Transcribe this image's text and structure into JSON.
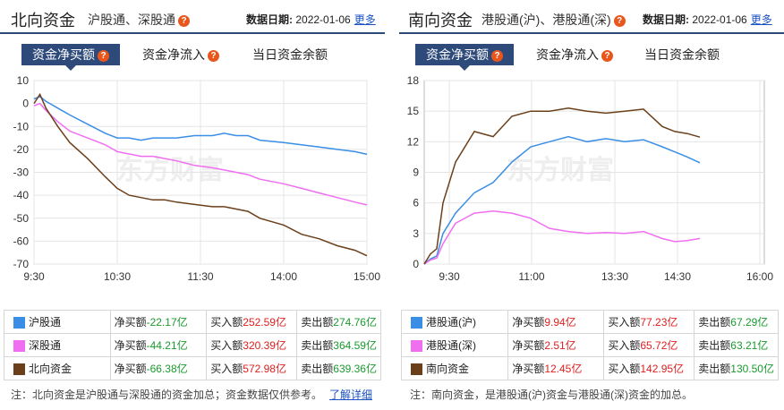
{
  "north": {
    "title": "北向资金",
    "subtitle": "沪股通、深股通",
    "date_label": "数据日期:",
    "date": "2022-01-06",
    "more": "更多",
    "tabs": [
      "资金净买额",
      "资金净流入",
      "当日资金余额"
    ],
    "watermark": "东方财富",
    "note": "注：北向资金是沪股通与深股通的资金加总；资金数据仅供参考。",
    "note_link": "了解详细",
    "rows": [
      {
        "name": "沪股通",
        "color": "#3a8ee6",
        "net_label": "净买额",
        "net": "-22.17亿",
        "buy_label": "买入额",
        "buy": "252.59亿",
        "sell_label": "卖出额",
        "sell": "274.76亿"
      },
      {
        "name": "深股通",
        "color": "#f06ef0",
        "net_label": "净买额",
        "net": "-44.21亿",
        "buy_label": "买入额",
        "buy": "320.39亿",
        "sell_label": "卖出额",
        "sell": "364.59亿"
      },
      {
        "name": "北向资金",
        "color": "#6b3f1a",
        "net_label": "净买额",
        "net": "-66.38亿",
        "buy_label": "买入额",
        "buy": "572.98亿",
        "sell_label": "卖出额",
        "sell": "639.36亿"
      }
    ]
  },
  "south": {
    "title": "南向资金",
    "subtitle": "港股通(沪)、港股通(深)",
    "date_label": "数据日期:",
    "date": "2022-01-06",
    "more": "更多",
    "tabs": [
      "资金净买额",
      "资金净流入",
      "当日资金余额"
    ],
    "watermark": "东方财富",
    "note": "注：南向资金，是港股通(沪)资金与港股通(深)资金的加总。",
    "rows": [
      {
        "name": "港股通(沪)",
        "color": "#3a8ee6",
        "net_label": "净买额",
        "net": "9.94亿",
        "buy_label": "买入额",
        "buy": "77.23亿",
        "sell_label": "卖出额",
        "sell": "67.29亿"
      },
      {
        "name": "港股通(深)",
        "color": "#f06ef0",
        "net_label": "净买额",
        "net": "2.51亿",
        "buy_label": "买入额",
        "buy": "65.72亿",
        "sell_label": "卖出额",
        "sell": "63.21亿"
      },
      {
        "name": "南向资金",
        "color": "#6b3f1a",
        "net_label": "净买额",
        "net": "12.45亿",
        "buy_label": "买入额",
        "buy": "142.95亿",
        "sell_label": "卖出额",
        "sell": "130.50亿"
      }
    ]
  },
  "chart_data": [
    {
      "type": "line",
      "x_ticks": [
        "9:30",
        "10:30",
        "11:30",
        "14:00",
        "15:00"
      ],
      "ylim": [
        -70,
        10
      ],
      "y_ticks": [
        10,
        0,
        -10,
        -20,
        -30,
        -40,
        -50,
        -60,
        -70
      ],
      "grid": true,
      "series": [
        {
          "name": "沪股通",
          "color": "#3a8ee6",
          "points": [
            [
              0,
              2
            ],
            [
              5,
              3
            ],
            [
              10,
              1
            ],
            [
              20,
              -2
            ],
            [
              30,
              -5
            ],
            [
              45,
              -9
            ],
            [
              60,
              -13
            ],
            [
              70,
              -15
            ],
            [
              80,
              -15
            ],
            [
              90,
              -16
            ],
            [
              100,
              -15
            ],
            [
              110,
              -15
            ],
            [
              120,
              -15
            ],
            [
              135,
              -14
            ],
            [
              150,
              -14
            ],
            [
              160,
              -13
            ],
            [
              170,
              -14
            ],
            [
              180,
              -14
            ],
            [
              190,
              -16
            ],
            [
              210,
              -17
            ],
            [
              225,
              -18
            ],
            [
              240,
              -19
            ],
            [
              255,
              -20
            ],
            [
              270,
              -21
            ],
            [
              280,
              -22.17
            ]
          ]
        },
        {
          "name": "深股通",
          "color": "#f06ef0",
          "points": [
            [
              0,
              -1
            ],
            [
              5,
              0
            ],
            [
              10,
              -3
            ],
            [
              20,
              -8
            ],
            [
              30,
              -12
            ],
            [
              45,
              -15
            ],
            [
              60,
              -18
            ],
            [
              70,
              -21
            ],
            [
              80,
              -22
            ],
            [
              90,
              -23
            ],
            [
              100,
              -23
            ],
            [
              110,
              -24
            ],
            [
              120,
              -25
            ],
            [
              135,
              -27
            ],
            [
              150,
              -28
            ],
            [
              160,
              -29
            ],
            [
              170,
              -30
            ],
            [
              180,
              -31
            ],
            [
              190,
              -33
            ],
            [
              210,
              -35
            ],
            [
              225,
              -37
            ],
            [
              240,
              -39
            ],
            [
              255,
              -41
            ],
            [
              270,
              -43
            ],
            [
              280,
              -44.21
            ]
          ]
        },
        {
          "name": "北向资金",
          "color": "#6b3f1a",
          "points": [
            [
              0,
              0
            ],
            [
              5,
              4
            ],
            [
              10,
              -2
            ],
            [
              20,
              -10
            ],
            [
              30,
              -17
            ],
            [
              45,
              -24
            ],
            [
              60,
              -32
            ],
            [
              70,
              -37
            ],
            [
              80,
              -40
            ],
            [
              90,
              -41
            ],
            [
              100,
              -42
            ],
            [
              110,
              -42
            ],
            [
              120,
              -43
            ],
            [
              135,
              -44
            ],
            [
              150,
              -45
            ],
            [
              160,
              -45
            ],
            [
              170,
              -46
            ],
            [
              180,
              -47
            ],
            [
              190,
              -50
            ],
            [
              210,
              -53
            ],
            [
              225,
              -57
            ],
            [
              240,
              -59
            ],
            [
              255,
              -62
            ],
            [
              270,
              -64
            ],
            [
              280,
              -66.38
            ]
          ]
        }
      ]
    },
    {
      "type": "line",
      "x_ticks": [
        "9:30",
        "11:00",
        "13:30",
        "14:30",
        "16:00"
      ],
      "ylim": [
        0,
        18
      ],
      "y_ticks": [
        18,
        15,
        12,
        9,
        6,
        3,
        0
      ],
      "grid": true,
      "series": [
        {
          "name": "港股通(沪)",
          "color": "#3a8ee6",
          "points": [
            [
              0,
              0
            ],
            [
              5,
              0.5
            ],
            [
              10,
              0.8
            ],
            [
              15,
              3
            ],
            [
              25,
              5
            ],
            [
              40,
              7
            ],
            [
              55,
              8
            ],
            [
              70,
              10
            ],
            [
              85,
              11.5
            ],
            [
              100,
              12
            ],
            [
              115,
              12.5
            ],
            [
              130,
              12
            ],
            [
              145,
              12.3
            ],
            [
              160,
              12
            ],
            [
              175,
              12.2
            ],
            [
              190,
              11.5
            ],
            [
              200,
              11
            ],
            [
              210,
              10.5
            ],
            [
              220,
              9.94
            ]
          ]
        },
        {
          "name": "港股通(深)",
          "color": "#f06ef0",
          "points": [
            [
              0,
              0
            ],
            [
              5,
              0.4
            ],
            [
              10,
              0.6
            ],
            [
              15,
              2
            ],
            [
              25,
              4
            ],
            [
              40,
              5
            ],
            [
              55,
              5.2
            ],
            [
              70,
              5
            ],
            [
              85,
              4.5
            ],
            [
              100,
              3.5
            ],
            [
              115,
              3.2
            ],
            [
              130,
              3
            ],
            [
              145,
              3.1
            ],
            [
              160,
              3
            ],
            [
              175,
              3.2
            ],
            [
              190,
              2.5
            ],
            [
              200,
              2.2
            ],
            [
              210,
              2.3
            ],
            [
              220,
              2.51
            ]
          ]
        },
        {
          "name": "南向资金",
          "color": "#6b3f1a",
          "points": [
            [
              0,
              0
            ],
            [
              5,
              1
            ],
            [
              10,
              1.5
            ],
            [
              15,
              6
            ],
            [
              25,
              10
            ],
            [
              40,
              13
            ],
            [
              55,
              12.5
            ],
            [
              70,
              14.5
            ],
            [
              85,
              15
            ],
            [
              100,
              15
            ],
            [
              115,
              15.3
            ],
            [
              130,
              15
            ],
            [
              145,
              14.8
            ],
            [
              160,
              15
            ],
            [
              175,
              15.2
            ],
            [
              190,
              13.5
            ],
            [
              200,
              13
            ],
            [
              210,
              12.8
            ],
            [
              220,
              12.45
            ]
          ]
        }
      ]
    }
  ]
}
